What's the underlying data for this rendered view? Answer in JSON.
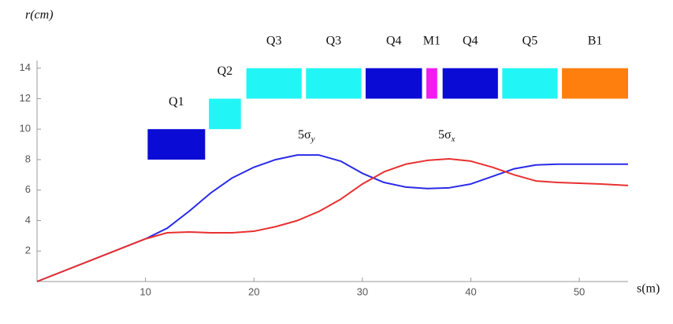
{
  "chart_data": {
    "type": "line",
    "y_axis_label": "r(cm)",
    "x_axis_label": "s(m)",
    "xlim": [
      0,
      54.5
    ],
    "ylim": [
      0,
      14.5
    ],
    "xticks": [
      10,
      20,
      30,
      40,
      50
    ],
    "yticks": [
      2,
      4,
      6,
      8,
      10,
      12,
      14
    ],
    "x": [
      0,
      10,
      12,
      14,
      16,
      18,
      20,
      22,
      24,
      26,
      28,
      30,
      32,
      34,
      36,
      38,
      40,
      42,
      44,
      46,
      48,
      50,
      52,
      54.5
    ],
    "series": [
      {
        "name": "5σy",
        "color": "#2a2ae8",
        "values": [
          0,
          2.8,
          3.5,
          4.6,
          5.8,
          6.8,
          7.5,
          8.0,
          8.3,
          8.3,
          7.9,
          7.1,
          6.5,
          6.2,
          6.1,
          6.15,
          6.4,
          6.9,
          7.4,
          7.65,
          7.7,
          7.7,
          7.7,
          7.7
        ]
      },
      {
        "name": "5σx",
        "color": "#e83030",
        "values": [
          0,
          2.8,
          3.2,
          3.25,
          3.2,
          3.2,
          3.3,
          3.6,
          4.0,
          4.6,
          5.4,
          6.4,
          7.2,
          7.7,
          7.95,
          8.05,
          7.9,
          7.5,
          7.0,
          6.6,
          6.5,
          6.45,
          6.4,
          6.3
        ]
      }
    ],
    "annotations": [
      {
        "text": "5σ",
        "subscript": "y"
      },
      {
        "text": "5σ",
        "subscript": "x"
      }
    ],
    "elements": [
      {
        "label": "Q1",
        "s_start": 10.2,
        "s_end": 15.5,
        "r_bottom": 8,
        "r_top": 10,
        "color": "#0b0bd6"
      },
      {
        "label": "Q2",
        "s_start": 15.85,
        "s_end": 18.8,
        "r_bottom": 10,
        "r_top": 12,
        "color": "#22f5f5"
      },
      {
        "label": "Q3",
        "s_start": 19.3,
        "s_end": 24.4,
        "r_bottom": 12,
        "r_top": 14,
        "color": "#22f5f5"
      },
      {
        "label": "Q3",
        "s_start": 24.8,
        "s_end": 29.9,
        "r_bottom": 12,
        "r_top": 14,
        "color": "#22f5f5"
      },
      {
        "label": "Q4",
        "s_start": 30.3,
        "s_end": 35.5,
        "r_bottom": 12,
        "r_top": 14,
        "color": "#0b0bd6"
      },
      {
        "label": "M1",
        "s_start": 35.9,
        "s_end": 36.9,
        "r_bottom": 12,
        "r_top": 14,
        "color": "#f01cf0"
      },
      {
        "label": "Q4",
        "s_start": 37.4,
        "s_end": 42.5,
        "r_bottom": 12,
        "r_top": 14,
        "color": "#0b0bd6"
      },
      {
        "label": "Q5",
        "s_start": 42.9,
        "s_end": 48.0,
        "r_bottom": 12,
        "r_top": 14,
        "color": "#22f5f5"
      },
      {
        "label": "B1",
        "s_start": 48.4,
        "s_end": 54.5,
        "r_bottom": 12,
        "r_top": 14,
        "color": "#ff7f0e"
      }
    ]
  }
}
